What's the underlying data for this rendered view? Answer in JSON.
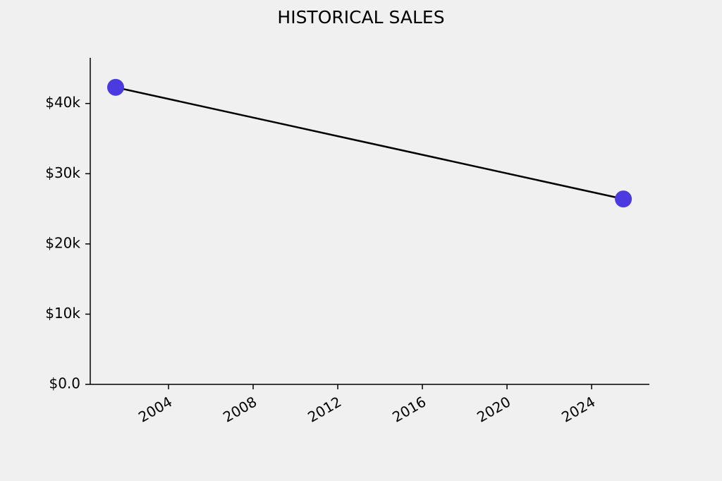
{
  "chart_data": {
    "type": "line",
    "title": "HISTORICAL SALES",
    "x": [
      2001.5,
      2025.5
    ],
    "series": [
      {
        "values": [
          42300,
          26400
        ],
        "color": "#4a3ae0",
        "line_color": "#000000"
      }
    ],
    "xlim": [
      2000.3,
      2026.73
    ],
    "xticks": [
      2004,
      2008,
      2012,
      2016,
      2020,
      2024
    ],
    "ylim": [
      0,
      46500
    ],
    "yticks": [
      {
        "value": 0,
        "label": "$0.0"
      },
      {
        "value": 10000,
        "label": "$10k"
      },
      {
        "value": 20000,
        "label": "$20k"
      },
      {
        "value": 30000,
        "label": "$30k"
      },
      {
        "value": 40000,
        "label": "$40k"
      }
    ],
    "grid": false
  }
}
